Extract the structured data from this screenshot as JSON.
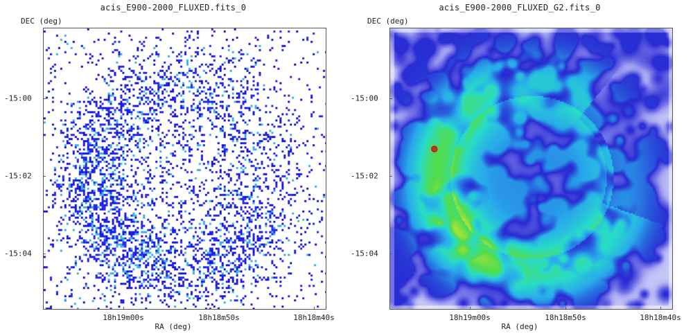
{
  "panels": [
    {
      "id": "left",
      "title": "acis_E900-2000_FLUXED.fits_0",
      "ylabel": "DEC (deg)",
      "xlabel": "RA (deg)",
      "yticks": [
        "-15:00",
        "-15:02",
        "-15:04"
      ],
      "xticks": [
        "18h19m00s",
        "18h18m50s",
        "18h18m40s"
      ],
      "style": "sparse-counts"
    },
    {
      "id": "right",
      "title": "acis_E900-2000_FLUXED_G2.fits_0",
      "ylabel": "DEC (deg)",
      "xlabel": "RA (deg)",
      "yticks": [
        "-15:00",
        "-15:02",
        "-15:04"
      ],
      "xticks": [
        "18h19m00s",
        "18h18m50s",
        "18h18m40s"
      ],
      "style": "smoothed"
    }
  ],
  "colors": {
    "frame": "#555555",
    "background": "#ffffff",
    "counts_dark": "#1a1adc",
    "counts_light": "#3cb4e6"
  }
}
